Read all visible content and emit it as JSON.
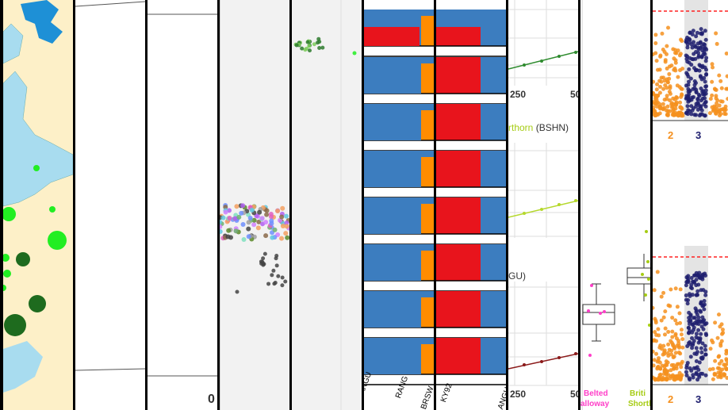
{
  "strips": {
    "s5_axis_label": "0",
    "s8_ticks_top": [
      "250",
      "50"
    ],
    "s8_title_mid": "rthorn",
    "s8_title_mid_code": "(BSHN)",
    "s8_title_low": "GU)",
    "s8_ticks_bottom": [
      "250",
      "50"
    ],
    "s9_label_left_1": "Belted",
    "s9_label_left_2": "alloway",
    "s9_label_right_1": "Briti",
    "s9_label_right_2": "Shortho",
    "s6_axis_labels": [
      "ANGU",
      "RANG",
      "BRSW"
    ],
    "s7_axis_labels": [
      "KY92",
      "ANGU"
    ],
    "s10_ticks_top": [
      "2",
      "3"
    ],
    "s10_ticks_bottom": [
      "2",
      "3"
    ]
  },
  "colors": {
    "map_land": "#fdf0c8",
    "map_water": "#a8dcef",
    "map_lake": "#1e90d6",
    "light_green": "#22ee22",
    "dark_green": "#1e6b1e",
    "struct_red": "#e8141c",
    "struct_blue": "#3c7dbf",
    "struct_orange": "#ff8c00",
    "manhattan_orange": "#f5901e",
    "manhattan_navy": "#1e1e6e",
    "line_green": "#2e8b2e",
    "line_lime": "#b5d82c",
    "line_brown": "#8b1a1a",
    "pink": "#ff3ec8",
    "olive": "#a6cc14",
    "threshold_red": "#ff2020"
  }
}
